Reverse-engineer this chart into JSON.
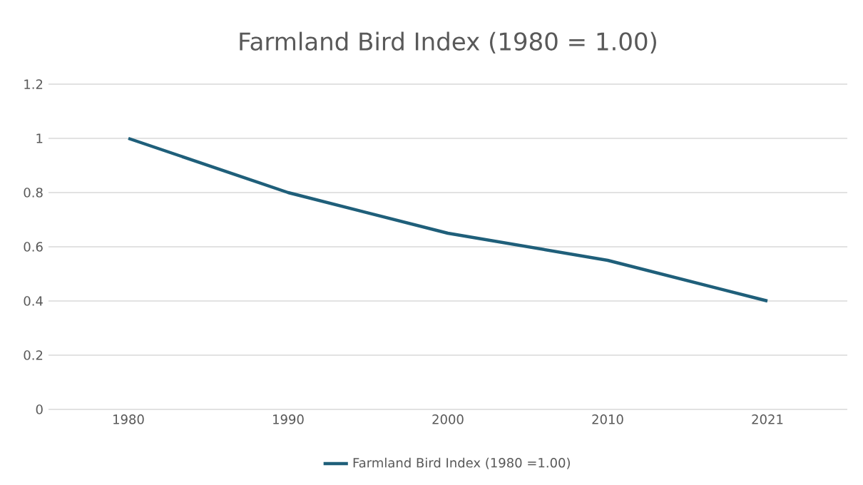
{
  "chart_data": {
    "type": "line",
    "title": "Farmland Bird Index (1980 = 1.00)",
    "categories": [
      "1980",
      "1990",
      "2000",
      "2010",
      "2021"
    ],
    "series": [
      {
        "name": "Farmland Bird Index (1980 =1.00)",
        "color": "#1f5f7a",
        "values": [
          1.0,
          0.8,
          0.65,
          0.55,
          0.4
        ]
      }
    ],
    "ylim": [
      0,
      1.2
    ],
    "yticks": [
      0,
      0.2,
      0.4,
      0.6,
      0.8,
      1,
      1.2
    ],
    "grid": "y",
    "legend": "bottom",
    "marker": "none",
    "line_style": "solid"
  }
}
